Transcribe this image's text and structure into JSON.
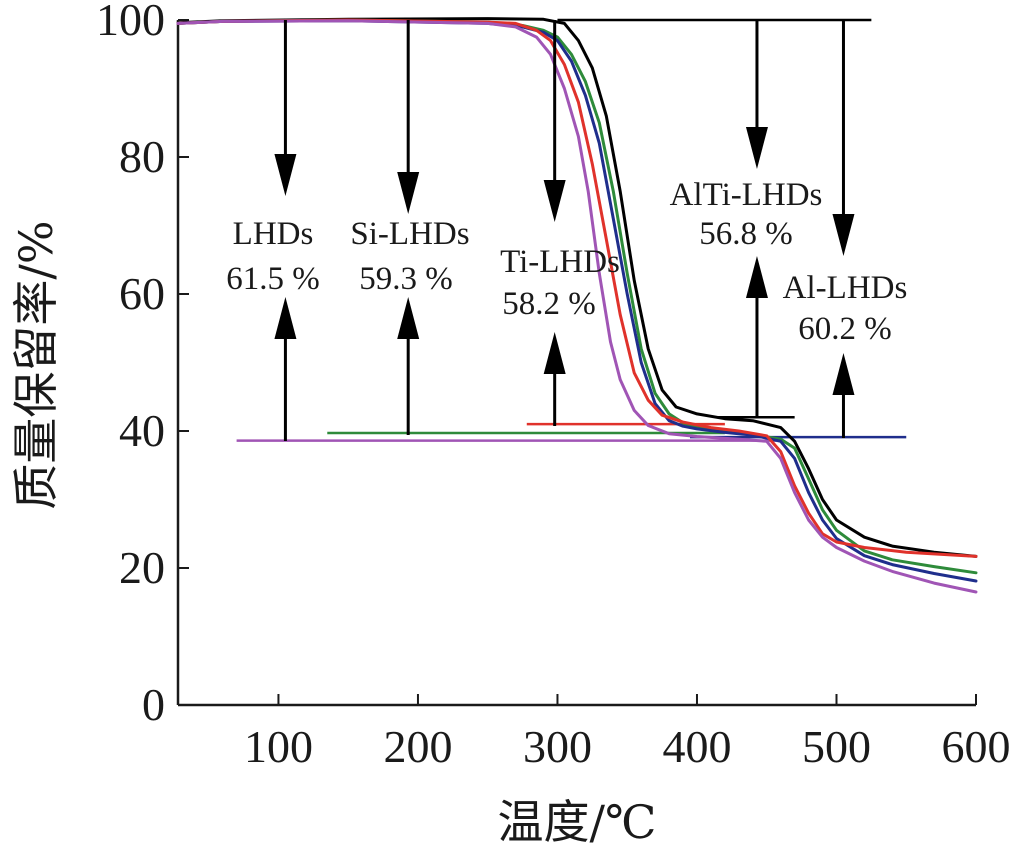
{
  "chart_data": {
    "type": "line",
    "xlabel": "温度/℃",
    "ylabel": "质量保留率/%",
    "xlim": [
      28,
      600
    ],
    "ylim": [
      0,
      100
    ],
    "xticks": [
      100,
      200,
      300,
      400,
      500,
      600
    ],
    "yticks": [
      0,
      20,
      40,
      60,
      80,
      100
    ],
    "grid": false,
    "series": [
      {
        "color": "#000000",
        "points": [
          [
            28,
            99.6
          ],
          [
            60,
            99.9
          ],
          [
            150,
            100.1
          ],
          [
            250,
            100.2
          ],
          [
            290,
            100.1
          ],
          [
            305,
            99.5
          ],
          [
            315,
            97
          ],
          [
            325,
            93
          ],
          [
            335,
            86
          ],
          [
            345,
            75
          ],
          [
            355,
            62
          ],
          [
            365,
            52
          ],
          [
            375,
            46
          ],
          [
            385,
            43.5
          ],
          [
            400,
            42.5
          ],
          [
            420,
            41.8
          ],
          [
            440,
            41.5
          ],
          [
            460,
            40.5
          ],
          [
            470,
            38.5
          ],
          [
            480,
            34.5
          ],
          [
            490,
            30
          ],
          [
            500,
            27
          ],
          [
            520,
            24.5
          ],
          [
            540,
            23.2
          ],
          [
            570,
            22.3
          ],
          [
            600,
            21.7
          ]
        ]
      },
      {
        "color": "#2e8b3a",
        "points": [
          [
            28,
            99.5
          ],
          [
            60,
            99.8
          ],
          [
            150,
            100
          ],
          [
            250,
            99.7
          ],
          [
            275,
            99.2
          ],
          [
            290,
            98.5
          ],
          [
            300,
            97.5
          ],
          [
            310,
            95
          ],
          [
            320,
            91
          ],
          [
            330,
            85
          ],
          [
            340,
            75
          ],
          [
            350,
            63
          ],
          [
            360,
            52
          ],
          [
            370,
            45.5
          ],
          [
            380,
            42.5
          ],
          [
            390,
            41.2
          ],
          [
            400,
            40.5
          ],
          [
            420,
            40
          ],
          [
            440,
            39.5
          ],
          [
            460,
            38.8
          ],
          [
            470,
            37.5
          ],
          [
            480,
            33
          ],
          [
            490,
            28.5
          ],
          [
            500,
            25.5
          ],
          [
            520,
            22.5
          ],
          [
            540,
            21.2
          ],
          [
            570,
            20.2
          ],
          [
            600,
            19.3
          ]
        ]
      },
      {
        "color": "#1f2e8c",
        "points": [
          [
            28,
            99.5
          ],
          [
            60,
            99.8
          ],
          [
            150,
            99.9
          ],
          [
            250,
            99.5
          ],
          [
            275,
            99
          ],
          [
            290,
            98.2
          ],
          [
            300,
            97
          ],
          [
            310,
            94
          ],
          [
            320,
            89
          ],
          [
            330,
            82
          ],
          [
            340,
            71
          ],
          [
            350,
            60
          ],
          [
            360,
            50
          ],
          [
            370,
            44
          ],
          [
            380,
            41.5
          ],
          [
            390,
            40.7
          ],
          [
            400,
            40.3
          ],
          [
            420,
            39.8
          ],
          [
            440,
            39.4
          ],
          [
            460,
            38.5
          ],
          [
            470,
            36
          ],
          [
            480,
            31
          ],
          [
            490,
            27
          ],
          [
            500,
            24.3
          ],
          [
            520,
            21.8
          ],
          [
            540,
            20.5
          ],
          [
            570,
            19.2
          ],
          [
            600,
            18.1
          ]
        ]
      },
      {
        "color": "#e0322b",
        "points": [
          [
            28,
            99.5
          ],
          [
            60,
            99.8
          ],
          [
            150,
            100
          ],
          [
            250,
            99.7
          ],
          [
            270,
            99.5
          ],
          [
            285,
            98.5
          ],
          [
            295,
            97
          ],
          [
            305,
            93.5
          ],
          [
            315,
            88
          ],
          [
            325,
            79
          ],
          [
            335,
            68
          ],
          [
            345,
            57
          ],
          [
            355,
            48.5
          ],
          [
            365,
            44.5
          ],
          [
            375,
            42.3
          ],
          [
            390,
            41.3
          ],
          [
            410,
            40.5
          ],
          [
            430,
            40
          ],
          [
            450,
            39.3
          ],
          [
            460,
            37
          ],
          [
            470,
            32
          ],
          [
            480,
            28
          ],
          [
            490,
            25
          ],
          [
            500,
            23.8
          ],
          [
            520,
            23
          ],
          [
            550,
            22.3
          ],
          [
            600,
            21.7
          ]
        ]
      },
      {
        "color": "#a055b5",
        "points": [
          [
            28,
            99.5
          ],
          [
            60,
            99.8
          ],
          [
            150,
            99.9
          ],
          [
            250,
            99.5
          ],
          [
            270,
            99
          ],
          [
            285,
            97.5
          ],
          [
            295,
            95
          ],
          [
            305,
            90
          ],
          [
            315,
            83
          ],
          [
            322,
            75
          ],
          [
            330,
            63
          ],
          [
            338,
            53
          ],
          [
            345,
            47.5
          ],
          [
            355,
            43
          ],
          [
            365,
            40.8
          ],
          [
            380,
            39.6
          ],
          [
            400,
            39.2
          ],
          [
            430,
            38.8
          ],
          [
            450,
            38.5
          ],
          [
            460,
            36
          ],
          [
            470,
            31
          ],
          [
            480,
            27
          ],
          [
            490,
            24.5
          ],
          [
            500,
            23
          ],
          [
            520,
            21
          ],
          [
            540,
            19.5
          ],
          [
            570,
            17.8
          ],
          [
            600,
            16.5
          ]
        ]
      }
    ],
    "baselines": [
      {
        "color": "#000000",
        "x": [
          300,
          525
        ],
        "y": 100
      },
      {
        "color": "#000000",
        "x": [
          415,
          470
        ],
        "y": 42
      },
      {
        "color": "#e0322b",
        "x": [
          278,
          420
        ],
        "y": 41
      },
      {
        "color": "#2e8b3a",
        "x": [
          135,
          420
        ],
        "y": 39.7
      },
      {
        "color": "#1f2e8c",
        "x": [
          395,
          550
        ],
        "y": 39.1
      },
      {
        "color": "#a055b5",
        "x": [
          70,
          460
        ],
        "y": 38.6
      }
    ],
    "annotations": [
      {
        "name": "LHDs",
        "value": "61.5 %",
        "x": 105
      },
      {
        "name": "Si-LHDs",
        "value": "59.3 %",
        "x": 193
      },
      {
        "name": "Ti-LHDs",
        "value": "58.2 %",
        "x": 298
      },
      {
        "name": "AlTi-LHDs",
        "value": "56.8 %",
        "x": 443
      },
      {
        "name": "Al-LHDs",
        "value": "60.2 %",
        "x": 505
      }
    ]
  }
}
